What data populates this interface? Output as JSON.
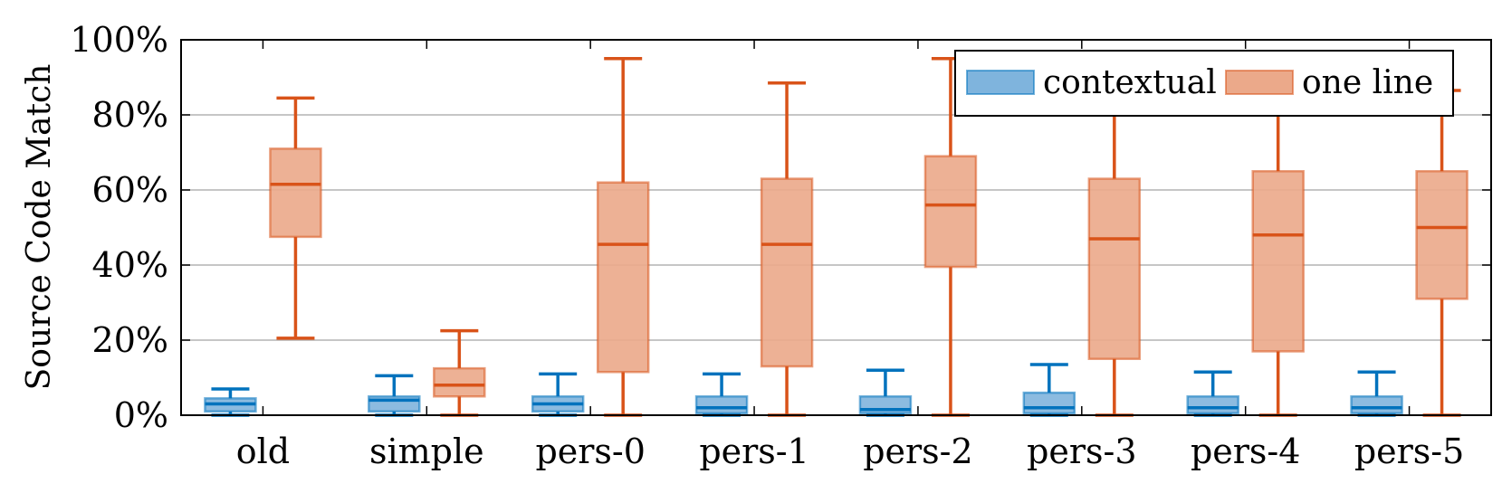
{
  "chart_data": {
    "type": "box",
    "ylabel": "Source Code Match",
    "ylim": [
      0,
      100
    ],
    "yticks": [
      "0%",
      "20%",
      "40%",
      "60%",
      "80%",
      "100%"
    ],
    "ytick_values": [
      0,
      20,
      40,
      60,
      80,
      100
    ],
    "categories": [
      "old",
      "simple",
      "pers-0",
      "pers-1",
      "pers-2",
      "pers-3",
      "pers-4",
      "pers-5"
    ],
    "grid": true,
    "legend_position": "top-right",
    "series": [
      {
        "name": "contextual",
        "color": "#0072BD",
        "fill": "#7fb4dd",
        "boxes": [
          {
            "min": 0,
            "q1": 1,
            "median": 3,
            "q3": 4.5,
            "max": 7
          },
          {
            "min": 0,
            "q1": 1,
            "median": 4,
            "q3": 5,
            "max": 10.5
          },
          {
            "min": 0,
            "q1": 1,
            "median": 3,
            "q3": 5,
            "max": 11
          },
          {
            "min": 0,
            "q1": 0.5,
            "median": 2,
            "q3": 5,
            "max": 11
          },
          {
            "min": 0,
            "q1": 0.5,
            "median": 1.5,
            "q3": 5,
            "max": 12
          },
          {
            "min": 0,
            "q1": 0.5,
            "median": 2,
            "q3": 6,
            "max": 13.5
          },
          {
            "min": 0,
            "q1": 0.5,
            "median": 2,
            "q3": 5,
            "max": 11.5
          },
          {
            "min": 0,
            "q1": 0.5,
            "median": 2,
            "q3": 5,
            "max": 11.5
          }
        ]
      },
      {
        "name": "one line",
        "color": "#D95319",
        "fill": "#eba98a",
        "boxes": [
          {
            "min": 20.5,
            "q1": 47.5,
            "median": 61.5,
            "q3": 71,
            "max": 84.5
          },
          {
            "min": 0,
            "q1": 5,
            "median": 8,
            "q3": 12.5,
            "max": 22.5
          },
          {
            "min": 0,
            "q1": 11.5,
            "median": 45.5,
            "q3": 62,
            "max": 95
          },
          {
            "min": 0,
            "q1": 13,
            "median": 45.5,
            "q3": 63,
            "max": 88.5
          },
          {
            "min": 0,
            "q1": 39.5,
            "median": 56,
            "q3": 69,
            "max": 95
          },
          {
            "min": 0,
            "q1": 15,
            "median": 47,
            "q3": 63,
            "max": 88
          },
          {
            "min": 0,
            "q1": 17,
            "median": 48,
            "q3": 65,
            "max": 88
          },
          {
            "min": 0,
            "q1": 31,
            "median": 50,
            "q3": 65,
            "max": 86.5
          }
        ]
      }
    ]
  }
}
